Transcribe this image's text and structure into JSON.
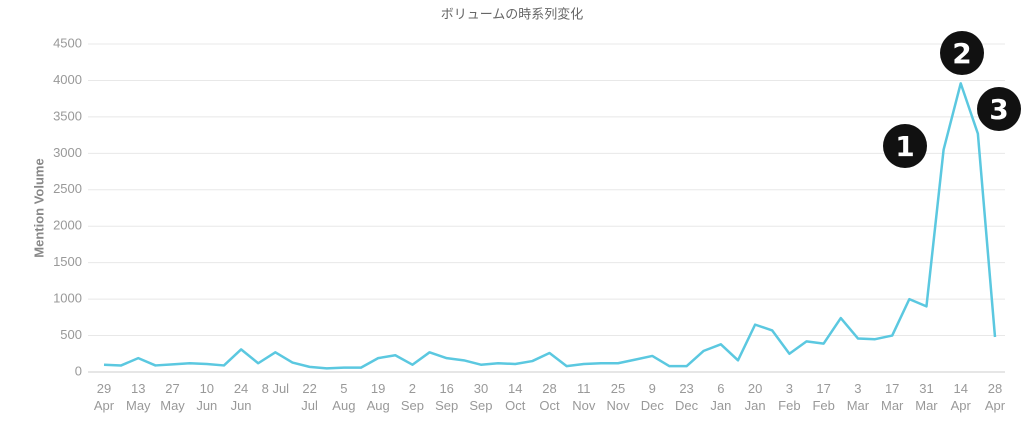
{
  "chart_data": {
    "type": "line",
    "title": "ボリュームの時系列変化",
    "y_label": "Mention Volume",
    "categories": [
      "29\nApr",
      null,
      "13\nMay",
      null,
      "27\nMay",
      null,
      "10\nJun",
      null,
      "24\nJun",
      null,
      "8 Jul",
      null,
      "22\nJul",
      null,
      "5\nAug",
      null,
      "19\nAug",
      null,
      "2\nSep",
      null,
      "16\nSep",
      null,
      "30\nSep",
      null,
      "14\nOct",
      null,
      "28\nOct",
      null,
      "11\nNov",
      null,
      "25\nNov",
      null,
      "9\nDec",
      null,
      "23\nDec",
      null,
      "6\nJan",
      null,
      "20\nJan",
      null,
      "3\nFeb",
      null,
      "17\nFeb",
      null,
      "3\nMar",
      null,
      "17\nMar",
      null,
      "31\nMar",
      null,
      "14\nApr",
      null,
      "28\nApr"
    ],
    "series": [
      {
        "name": "Mention Volume",
        "color": "#5bc8e0",
        "values": [
          100,
          90,
          190,
          90,
          105,
          120,
          110,
          90,
          310,
          120,
          270,
          130,
          70,
          50,
          60,
          60,
          190,
          230,
          100,
          270,
          190,
          160,
          100,
          120,
          110,
          150,
          260,
          80,
          110,
          120,
          120,
          170,
          220,
          80,
          80,
          290,
          380,
          160,
          650,
          570,
          250,
          420,
          390,
          740,
          460,
          450,
          500,
          1000,
          900,
          3050,
          3960,
          3270,
          480
        ]
      }
    ],
    "ylim": [
      0,
      4500
    ],
    "yticks": [
      0,
      500,
      1000,
      1500,
      2000,
      2500,
      3000,
      3500,
      4000,
      4500
    ],
    "grid": true,
    "annotations": [
      "1",
      "2",
      "3"
    ]
  }
}
